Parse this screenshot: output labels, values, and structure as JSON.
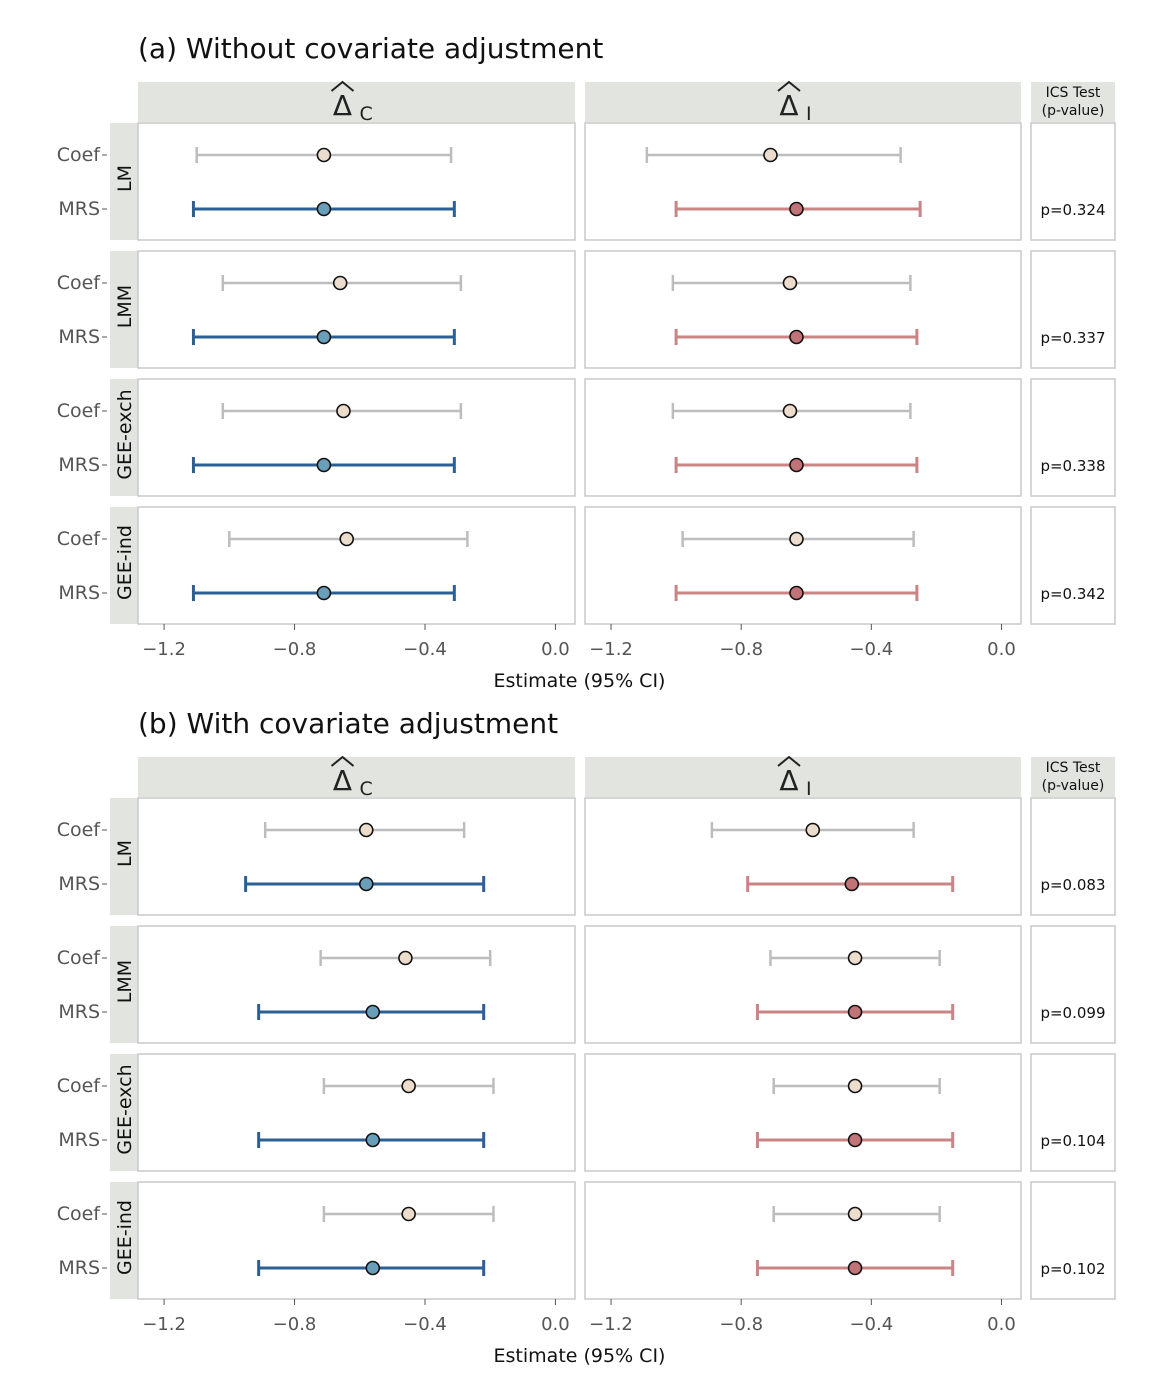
{
  "colors": {
    "strip_bg": "#e1e4df",
    "panel_border": "#c8c8c8",
    "coef_line": "#bdbdbd",
    "coef_point": "#ecdccb",
    "mrs_line_c": "#2c5f93",
    "mrs_point_c": "#6a9fba",
    "mrs_line_i": "#c98486",
    "mrs_point_i": "#c27377"
  },
  "chart_data": [
    {
      "type": "forest",
      "title": "(a) Without covariate adjustment",
      "xlabel": "Estimate (95% CI)",
      "xlim": [
        -1.28,
        0.06
      ],
      "xticks": [
        -1.2,
        -0.8,
        -0.4,
        0.0
      ],
      "xtick_labels": [
        "−1.2",
        "−0.8",
        "−0.4",
        "0.0"
      ],
      "columns": [
        {
          "label": "Δ",
          "subscript": "C",
          "hat": true
        },
        {
          "label": "Δ",
          "subscript": "I",
          "hat": true
        }
      ],
      "ics_header": [
        "ICS Test",
        "(p-value)"
      ],
      "rows": [
        "Coef",
        "MRS"
      ],
      "models": [
        {
          "name": "LM",
          "p_value": "p=0.324",
          "C": {
            "Coef": {
              "est": -0.71,
              "lo": -1.1,
              "hi": -0.32
            },
            "MRS": {
              "est": -0.71,
              "lo": -1.11,
              "hi": -0.31
            }
          },
          "I": {
            "Coef": {
              "est": -0.71,
              "lo": -1.09,
              "hi": -0.31
            },
            "MRS": {
              "est": -0.63,
              "lo": -1.0,
              "hi": -0.25
            }
          }
        },
        {
          "name": "LMM",
          "p_value": "p=0.337",
          "C": {
            "Coef": {
              "est": -0.66,
              "lo": -1.02,
              "hi": -0.29
            },
            "MRS": {
              "est": -0.71,
              "lo": -1.11,
              "hi": -0.31
            }
          },
          "I": {
            "Coef": {
              "est": -0.65,
              "lo": -1.01,
              "hi": -0.28
            },
            "MRS": {
              "est": -0.63,
              "lo": -1.0,
              "hi": -0.26
            }
          }
        },
        {
          "name": "GEE-exch",
          "p_value": "p=0.338",
          "C": {
            "Coef": {
              "est": -0.65,
              "lo": -1.02,
              "hi": -0.29
            },
            "MRS": {
              "est": -0.71,
              "lo": -1.11,
              "hi": -0.31
            }
          },
          "I": {
            "Coef": {
              "est": -0.65,
              "lo": -1.01,
              "hi": -0.28
            },
            "MRS": {
              "est": -0.63,
              "lo": -1.0,
              "hi": -0.26
            }
          }
        },
        {
          "name": "GEE-ind",
          "p_value": "p=0.342",
          "C": {
            "Coef": {
              "est": -0.64,
              "lo": -1.0,
              "hi": -0.27
            },
            "MRS": {
              "est": -0.71,
              "lo": -1.11,
              "hi": -0.31
            }
          },
          "I": {
            "Coef": {
              "est": -0.63,
              "lo": -0.98,
              "hi": -0.27
            },
            "MRS": {
              "est": -0.63,
              "lo": -1.0,
              "hi": -0.26
            }
          }
        }
      ]
    },
    {
      "type": "forest",
      "title": "(b) With covariate adjustment",
      "xlabel": "Estimate (95% CI)",
      "xlim": [
        -1.28,
        0.06
      ],
      "xticks": [
        -1.2,
        -0.8,
        -0.4,
        0.0
      ],
      "xtick_labels": [
        "−1.2",
        "−0.8",
        "−0.4",
        "0.0"
      ],
      "columns": [
        {
          "label": "Δ",
          "subscript": "C",
          "hat": true
        },
        {
          "label": "Δ",
          "subscript": "I",
          "hat": true
        }
      ],
      "ics_header": [
        "ICS Test",
        "(p-value)"
      ],
      "rows": [
        "Coef",
        "MRS"
      ],
      "models": [
        {
          "name": "LM",
          "p_value": "p=0.083",
          "C": {
            "Coef": {
              "est": -0.58,
              "lo": -0.89,
              "hi": -0.28
            },
            "MRS": {
              "est": -0.58,
              "lo": -0.95,
              "hi": -0.22
            }
          },
          "I": {
            "Coef": {
              "est": -0.58,
              "lo": -0.89,
              "hi": -0.27
            },
            "MRS": {
              "est": -0.46,
              "lo": -0.78,
              "hi": -0.15
            }
          }
        },
        {
          "name": "LMM",
          "p_value": "p=0.099",
          "C": {
            "Coef": {
              "est": -0.46,
              "lo": -0.72,
              "hi": -0.2
            },
            "MRS": {
              "est": -0.56,
              "lo": -0.91,
              "hi": -0.22
            }
          },
          "I": {
            "Coef": {
              "est": -0.45,
              "lo": -0.71,
              "hi": -0.19
            },
            "MRS": {
              "est": -0.45,
              "lo": -0.75,
              "hi": -0.15
            }
          }
        },
        {
          "name": "GEE-exch",
          "p_value": "p=0.104",
          "C": {
            "Coef": {
              "est": -0.45,
              "lo": -0.71,
              "hi": -0.19
            },
            "MRS": {
              "est": -0.56,
              "lo": -0.91,
              "hi": -0.22
            }
          },
          "I": {
            "Coef": {
              "est": -0.45,
              "lo": -0.7,
              "hi": -0.19
            },
            "MRS": {
              "est": -0.45,
              "lo": -0.75,
              "hi": -0.15
            }
          }
        },
        {
          "name": "GEE-ind",
          "p_value": "p=0.102",
          "C": {
            "Coef": {
              "est": -0.45,
              "lo": -0.71,
              "hi": -0.19
            },
            "MRS": {
              "est": -0.56,
              "lo": -0.91,
              "hi": -0.22
            }
          },
          "I": {
            "Coef": {
              "est": -0.45,
              "lo": -0.7,
              "hi": -0.19
            },
            "MRS": {
              "est": -0.45,
              "lo": -0.75,
              "hi": -0.15
            }
          }
        }
      ]
    }
  ]
}
